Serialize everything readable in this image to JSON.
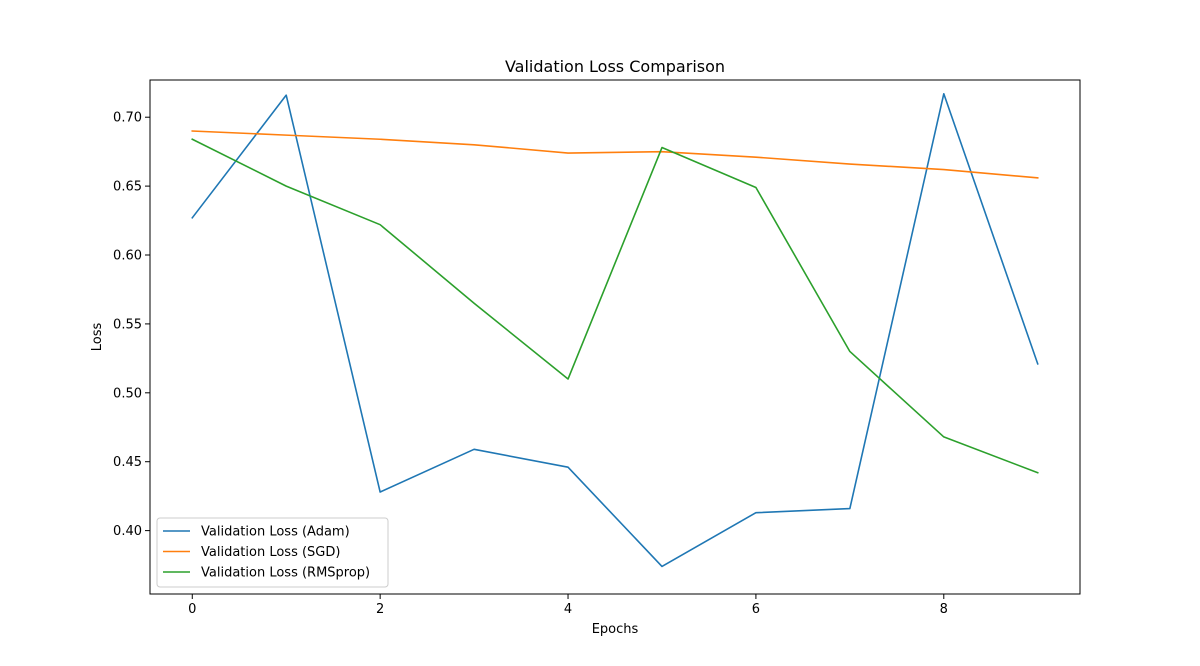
{
  "chart_data": {
    "type": "line",
    "title": "Validation Loss Comparison",
    "xlabel": "Epochs",
    "ylabel": "Loss",
    "x": [
      0,
      1,
      2,
      3,
      4,
      5,
      6,
      7,
      8,
      9
    ],
    "xlim": [
      -0.45,
      9.45
    ],
    "ylim": [
      0.354,
      0.727
    ],
    "xticks": [
      0,
      2,
      4,
      6,
      8
    ],
    "yticks": [
      0.4,
      0.45,
      0.5,
      0.55,
      0.6,
      0.65,
      0.7
    ],
    "grid": false,
    "legend_position": "lower-left",
    "series": [
      {
        "name": "Validation Loss (Adam)",
        "color": "#1f77b4",
        "values": [
          0.627,
          0.716,
          0.428,
          0.459,
          0.446,
          0.374,
          0.413,
          0.416,
          0.717,
          0.521
        ]
      },
      {
        "name": "Validation Loss (SGD)",
        "color": "#ff7f0e",
        "values": [
          0.69,
          0.687,
          0.684,
          0.68,
          0.674,
          0.675,
          0.671,
          0.666,
          0.662,
          0.656
        ]
      },
      {
        "name": "Validation Loss (RMSprop)",
        "color": "#2ca02c",
        "values": [
          0.684,
          0.65,
          0.622,
          0.565,
          0.51,
          0.678,
          0.649,
          0.53,
          0.468,
          0.442
        ]
      }
    ]
  }
}
